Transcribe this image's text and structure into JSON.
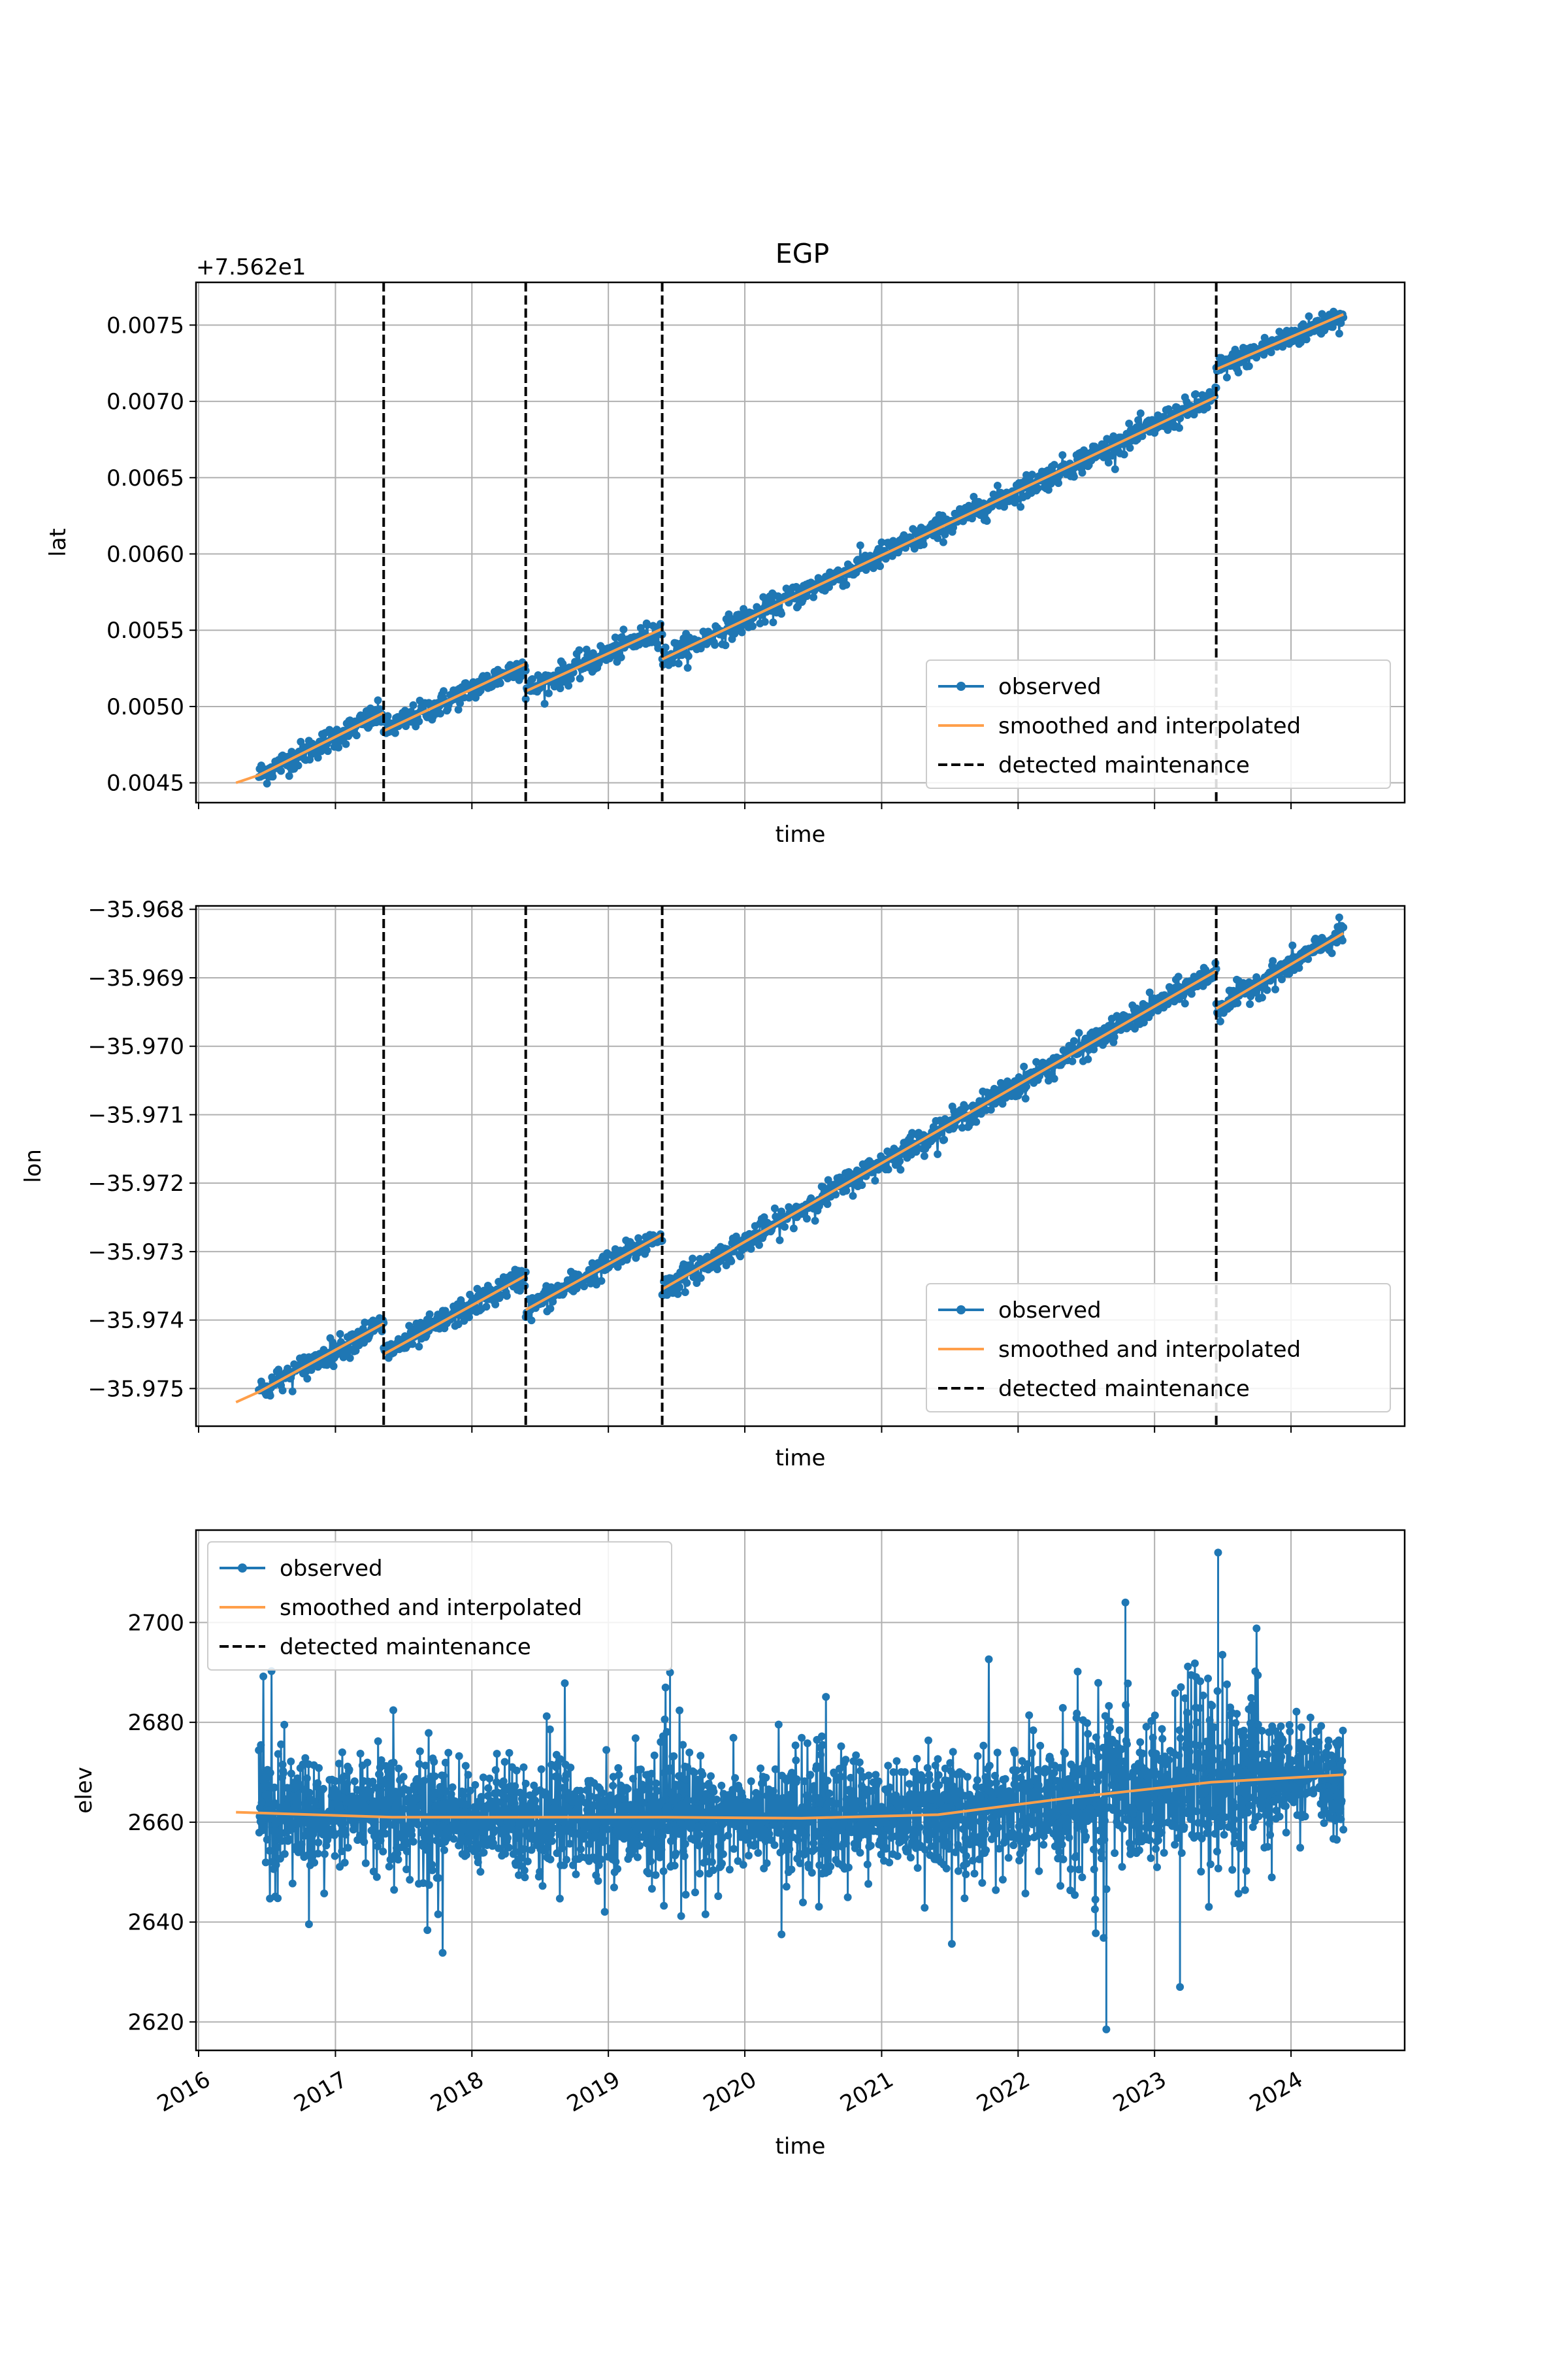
{
  "figure": {
    "title": "EGP",
    "xlabel": "time",
    "colors": {
      "observed": "#1f77b4",
      "smoothed": "#ff9f4a",
      "maintenance": "#000000",
      "grid": "#b0b0b0"
    },
    "legend_labels": [
      "observed",
      "smoothed and interpolated",
      "detected maintenance"
    ],
    "x_range": [
      "2015-12-25",
      "2024-10-31"
    ],
    "x_ticks": [
      "2016",
      "2017",
      "2018",
      "2019",
      "2020",
      "2021",
      "2022",
      "2023",
      "2024"
    ],
    "maintenance_dates": [
      "2017-05-10",
      "2018-05-25",
      "2019-05-25",
      "2023-06-15"
    ]
  },
  "chart_data": [
    {
      "type": "scatter",
      "ylabel": "lat",
      "offset_text": "+7.562e1",
      "ylim": [
        0.00437,
        0.00778
      ],
      "yticks": [
        0.0045,
        0.005,
        0.0055,
        0.006,
        0.0065,
        0.007,
        0.0075
      ],
      "ytick_labels": [
        "0.0045",
        "0.0050",
        "0.0055",
        "0.0060",
        "0.0065",
        "0.0070",
        "0.0075"
      ],
      "grid": true,
      "legend": "lower right",
      "segments": [
        {
          "start": "2016-06-10",
          "end": "2017-05-10",
          "y0": 0.00455,
          "y1": 0.00496
        },
        {
          "start": "2017-05-10",
          "end": "2018-05-25",
          "y0": 0.00484,
          "y1": 0.00528
        },
        {
          "start": "2018-05-25",
          "end": "2019-05-25",
          "y0": 0.0051,
          "y1": 0.00551
        },
        {
          "start": "2019-05-25",
          "end": "2023-06-15",
          "y0": 0.00531,
          "y1": 0.00703
        },
        {
          "start": "2023-06-15",
          "end": "2024-05-20",
          "y0": 0.00721,
          "y1": 0.00757
        }
      ],
      "smoothed": {
        "x": [
          "2016-04-10",
          "2016-06-10"
        ],
        "y": [
          0.0045,
          0.00455
        ]
      },
      "noise": 4e-05
    },
    {
      "type": "scatter",
      "ylabel": "lon",
      "ylim": [
        -35.97555,
        -35.96795
      ],
      "yticks": [
        -35.975,
        -35.974,
        -35.973,
        -35.972,
        -35.971,
        -35.97,
        -35.969,
        -35.968
      ],
      "ytick_labels": [
        "−35.975",
        "−35.974",
        "−35.973",
        "−35.972",
        "−35.971",
        "−35.970",
        "−35.969",
        "−35.968"
      ],
      "grid": true,
      "legend": "lower right",
      "segments": [
        {
          "start": "2016-06-10",
          "end": "2017-05-10",
          "y0": -35.97505,
          "y1": -35.97405
        },
        {
          "start": "2017-05-10",
          "end": "2018-05-25",
          "y0": -35.9745,
          "y1": -35.97335
        },
        {
          "start": "2018-05-25",
          "end": "2019-05-25",
          "y0": -35.97385,
          "y1": -35.97275
        },
        {
          "start": "2019-05-25",
          "end": "2023-06-15",
          "y0": -35.97355,
          "y1": -35.9689
        },
        {
          "start": "2023-06-15",
          "end": "2024-05-20",
          "y0": -35.96945,
          "y1": -35.96835
        }
      ],
      "smoothed": {
        "x": [
          "2016-04-10",
          "2016-06-10"
        ],
        "y": [
          -35.9752,
          -35.97505
        ]
      },
      "noise": 9e-05
    },
    {
      "type": "scatter",
      "ylabel": "elev",
      "ylim": [
        2614.3,
        2718.5
      ],
      "yticks": [
        2620,
        2640,
        2660,
        2680,
        2700
      ],
      "ytick_labels": [
        "2620",
        "2640",
        "2660",
        "2680",
        "2700"
      ],
      "grid": true,
      "legend": "upper left",
      "x_range": [
        "2016-06-10",
        "2024-05-20"
      ],
      "smoothed": {
        "x": [
          "2016-04-10",
          "2017-06-01",
          "2018-06-01",
          "2019-06-01",
          "2020-06-01",
          "2021-06-01",
          "2022-06-01",
          "2023-06-01",
          "2024-05-20"
        ],
        "y": [
          2662,
          2661,
          2661,
          2661,
          2660.8,
          2661.5,
          2665,
          2668,
          2669.5
        ]
      },
      "outliers": [
        {
          "x": "2022-08-25",
          "y": 2618.5
        },
        {
          "x": "2023-03-10",
          "y": 2627
        },
        {
          "x": "2023-06-20",
          "y": 2714
        },
        {
          "x": "2022-10-15",
          "y": 2704
        },
        {
          "x": "2019-06-15",
          "y": 2690
        }
      ]
    }
  ]
}
